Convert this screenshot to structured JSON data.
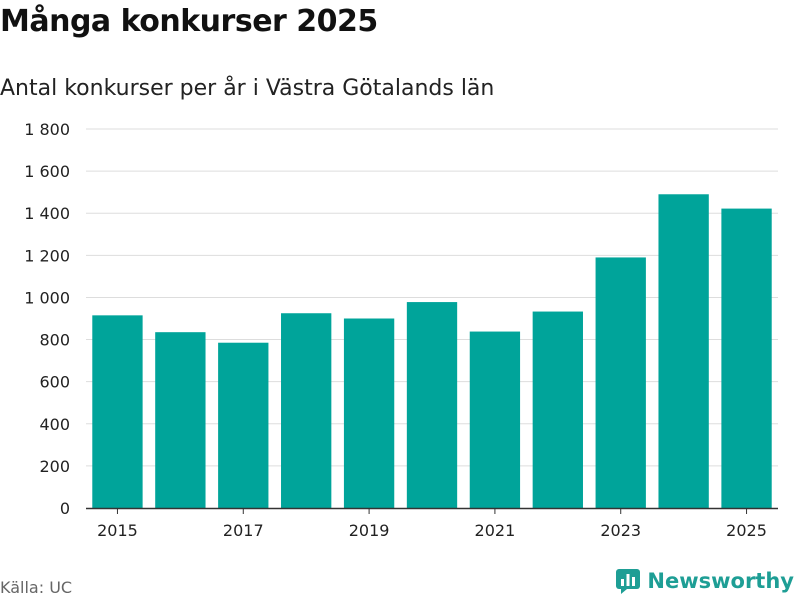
{
  "colors": {
    "bar": "#00a49a",
    "grid": "#dddddd",
    "axis": "#333333",
    "brand": "#1e9e95"
  },
  "brand": {
    "icon": "newsworthy-logo-icon",
    "name": "Newsworthy"
  },
  "source": "Källa: UC",
  "chart_data": {
    "type": "bar",
    "title": "Många konkurser 2025",
    "subtitle": "Antal konkurser per år i Västra Götalands län",
    "xlabel": "",
    "ylabel": "",
    "categories": [
      "2015",
      "2016",
      "2017",
      "2018",
      "2019",
      "2020",
      "2021",
      "2022",
      "2023",
      "2024",
      "2025"
    ],
    "values": [
      915,
      835,
      785,
      925,
      900,
      978,
      838,
      933,
      1190,
      1490,
      1422
    ],
    "x_tick_labels": [
      "2015",
      "",
      "2017",
      "",
      "2019",
      "",
      "2021",
      "",
      "2023",
      "",
      "2025"
    ],
    "yticks": [
      0,
      200,
      400,
      600,
      800,
      1000,
      1200,
      1400,
      1600,
      1800
    ],
    "ytick_labels": [
      "0",
      "200",
      "400",
      "600",
      "800",
      "1 000",
      "1 200",
      "1 400",
      "1 600",
      "1 800"
    ],
    "ylim": [
      0,
      1800
    ],
    "grid": true,
    "legend": "none"
  }
}
